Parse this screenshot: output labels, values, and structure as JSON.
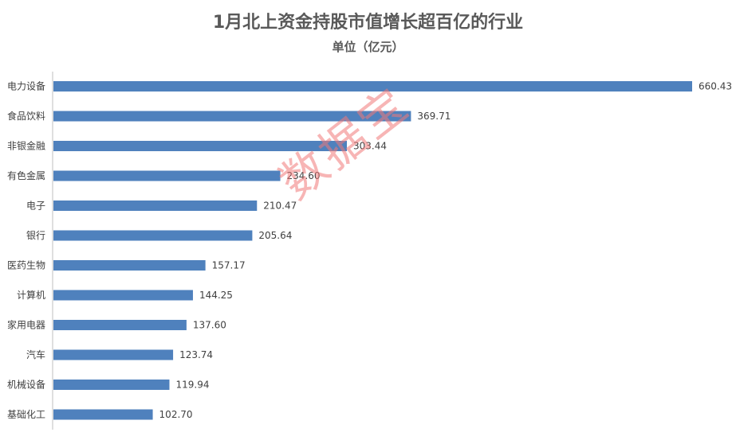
{
  "title": "1月北上资金持股市值增长超百亿的行业",
  "subtitle": "单位（亿元）",
  "watermark": "数据宝",
  "colors": {
    "bar": "#4F81BD",
    "axis": "#BFBFBF",
    "watermark": "#F28A8A"
  },
  "chart_data": {
    "type": "bar",
    "orientation": "horizontal",
    "title": "1月北上资金持股市值增长超百亿的行业",
    "subtitle": "单位（亿元）",
    "categories": [
      "电力设备",
      "食品饮料",
      "非银金融",
      "有色金属",
      "电子",
      "银行",
      "医药生物",
      "计算机",
      "家用电器",
      "汽车",
      "机械设备",
      "基础化工"
    ],
    "values": [
      660.43,
      369.71,
      303.44,
      234.6,
      210.47,
      205.64,
      157.17,
      144.25,
      137.6,
      123.74,
      119.94,
      102.7
    ],
    "value_labels": [
      "660.43",
      "369.71",
      "303.44",
      "234.60",
      "210.47",
      "205.64",
      "157.17",
      "144.25",
      "137.60",
      "123.74",
      "119.94",
      "102.70"
    ],
    "xlim": [
      0,
      660.43
    ],
    "grid": false,
    "legend": "none"
  }
}
